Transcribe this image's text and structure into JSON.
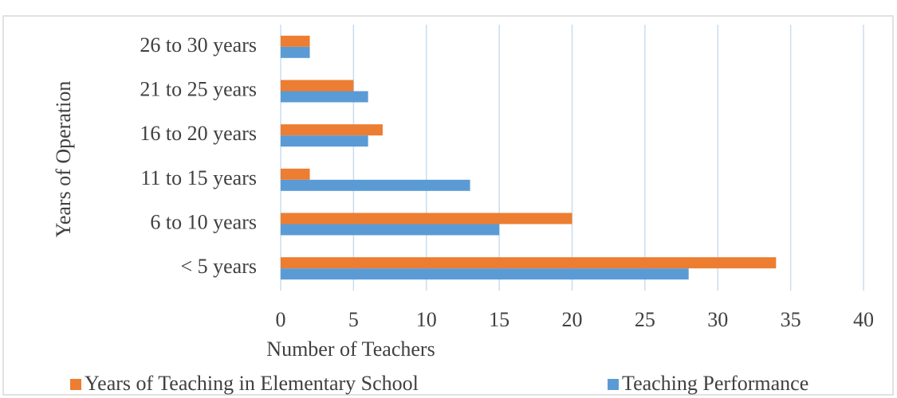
{
  "chart_data": {
    "type": "barh",
    "xlabel": "Number of Teachers",
    "ylabel": "Years of Operation",
    "categories": [
      "< 5 years",
      "6 to 10 years",
      "11 to 15 years",
      "16 to 20 years",
      "21 to 25 years",
      "26 to 30 years"
    ],
    "series": [
      {
        "name": "Years of Teaching in Elementary School",
        "color": "#ed7d31",
        "values": [
          34,
          20,
          2,
          7,
          5,
          2
        ]
      },
      {
        "name": "Teaching Performance",
        "color": "#5b9bd5",
        "values": [
          28,
          15,
          13,
          6,
          6,
          2
        ]
      }
    ],
    "xlim": [
      0,
      40
    ],
    "xticks": [
      0,
      5,
      10,
      15,
      20,
      25,
      30,
      35,
      40
    ],
    "grid": true,
    "legend": "bottom"
  }
}
